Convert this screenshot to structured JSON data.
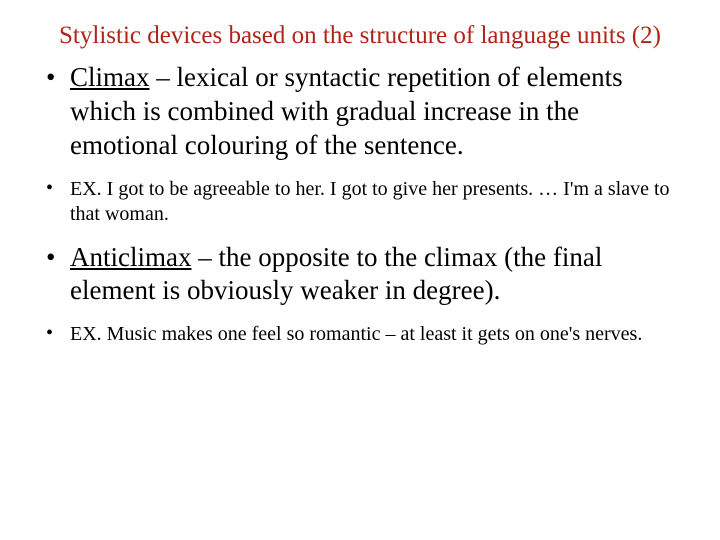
{
  "title_color": "#b02418",
  "text_color": "#000000",
  "title": "Stylistic devices based on the structure of language units (2)",
  "items": [
    {
      "size": "large",
      "term": "Climax",
      "body": " – lexical or syntactic repetition of elements which is combined with gradual increase in the emotional colouring of the sentence."
    },
    {
      "size": "small",
      "term": null,
      "body": "EX. I got to be agreeable to her. I got to give her presents. … I'm a slave to that woman."
    },
    {
      "size": "large",
      "term": "Anticlimax",
      "body": " – the opposite to the climax (the final element is obviously weaker in degree)."
    },
    {
      "size": "small",
      "term": null,
      "body": "EX. Music makes one feel so romantic – at least it gets on one's nerves."
    }
  ]
}
